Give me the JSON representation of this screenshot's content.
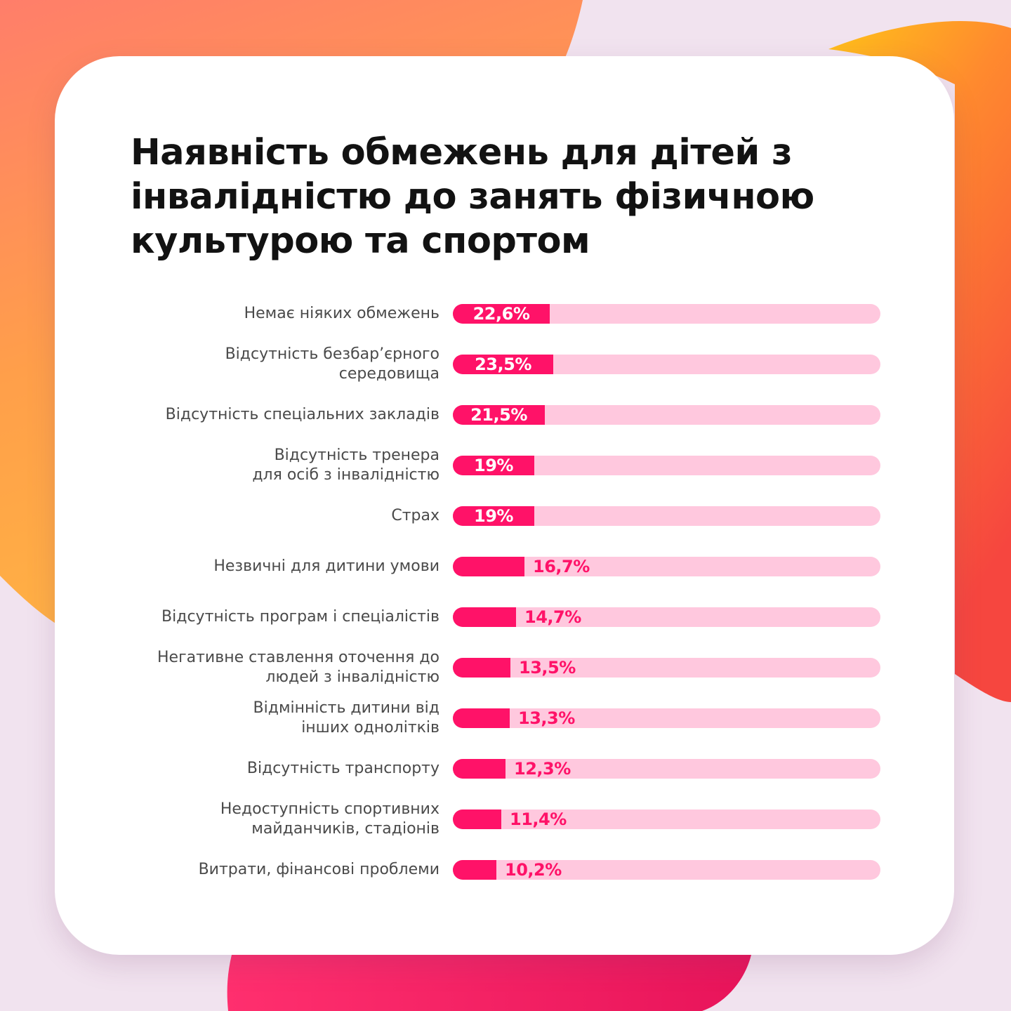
{
  "colors": {
    "accent": "#ff1268",
    "track": "#ffc8de",
    "title": "#121212",
    "label": "#4a4a4a",
    "card": "#ffffff"
  },
  "chart_data": {
    "type": "bar",
    "orientation": "horizontal",
    "title": "Наявність обмежень для дітей з інвалідністю до занять фізичною культурою та спортом",
    "xlabel": "",
    "ylabel": "",
    "xlim": [
      0,
      100
    ],
    "unit": "%",
    "grid": false,
    "legend": "none",
    "categories": [
      "Немає ніяких обмежень",
      "Відсутність безбар’єрного\nсередовища",
      "Відсутність спеціальних закладів",
      "Відсутність тренера\nдля осіб з інвалідністю",
      "Страх",
      "Незвичні для дитини умови",
      "Відсутність програм і спеціалістів",
      "Негативне ставлення оточення до\nлюдей з інвалідністю",
      "Відмінність дитини від\nінших однолітків",
      "Відсутність транспорту",
      "Недоступність спортивних\nмайданчиків, стадіонів",
      "Витрати, фінансові проблеми"
    ],
    "values": [
      22.6,
      23.5,
      21.5,
      19,
      19,
      16.7,
      14.7,
      13.5,
      13.3,
      12.3,
      11.4,
      10.2
    ],
    "data_labels": [
      "22,6%",
      "23,5%",
      "21,5%",
      "19%",
      "19%",
      "16,7%",
      "14,7%",
      "13,5%",
      "13,3%",
      "12,3%",
      "11,4%",
      "10,2%"
    ],
    "label_inside": [
      true,
      true,
      true,
      true,
      true,
      false,
      false,
      false,
      false,
      false,
      false,
      false
    ]
  }
}
